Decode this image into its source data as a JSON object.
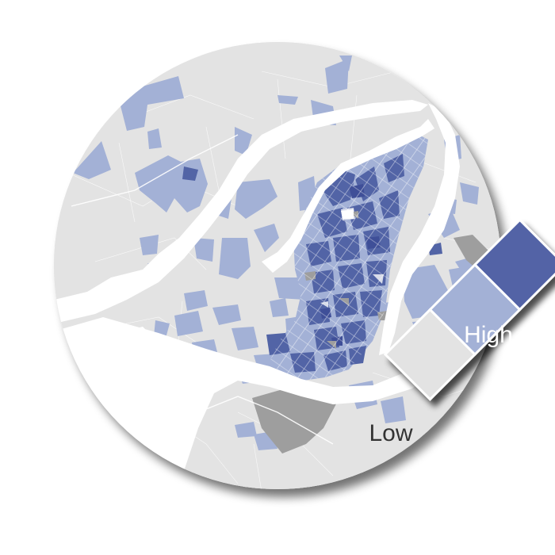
{
  "legend": {
    "high_label": "High",
    "low_label": "Low"
  },
  "colors": {
    "background_land": "#e3e3e3",
    "water": "#ffffff",
    "no_data": "#9e9e9e",
    "class_low": "#e3e3e3",
    "class_mid": "#a3b1d6",
    "class_high": "#5264a6",
    "class_high_dark": "#3f4f98",
    "high_text": "#ffffff",
    "low_text": "#333333"
  }
}
